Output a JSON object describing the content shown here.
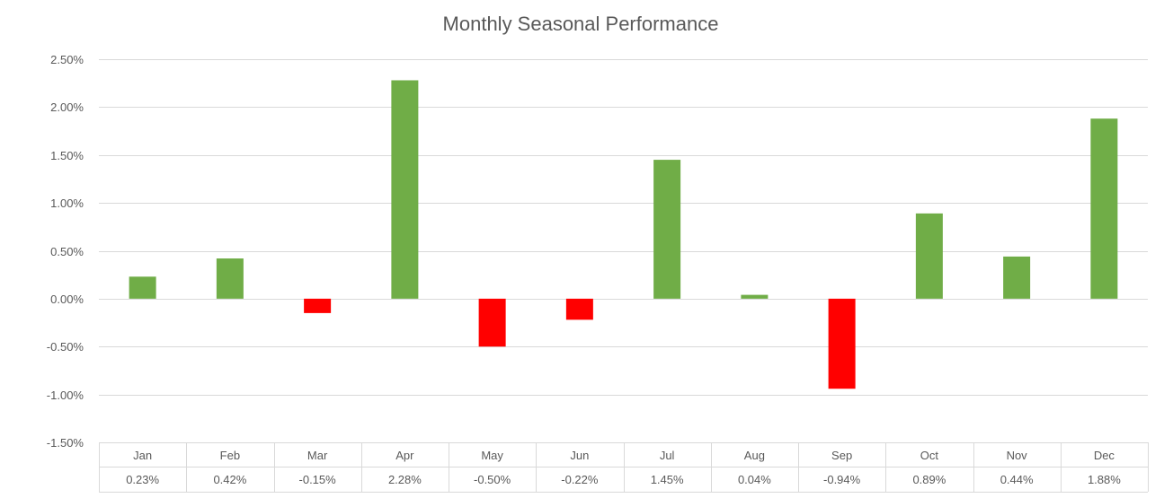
{
  "chart_data": {
    "type": "bar",
    "title": "Monthly Seasonal Performance",
    "xlabel": "",
    "ylabel": "",
    "categories": [
      "Jan",
      "Feb",
      "Mar",
      "Apr",
      "May",
      "Jun",
      "Jul",
      "Aug",
      "Sep",
      "Oct",
      "Nov",
      "Dec"
    ],
    "values": [
      0.23,
      0.42,
      -0.15,
      2.28,
      -0.5,
      -0.22,
      1.45,
      0.04,
      -0.94,
      0.89,
      0.44,
      1.88
    ],
    "value_labels": [
      "0.23%",
      "0.42%",
      "-0.15%",
      "2.28%",
      "-0.50%",
      "-0.22%",
      "1.45%",
      "0.04%",
      "-0.94%",
      "0.89%",
      "0.44%",
      "1.88%"
    ],
    "ylim": [
      -1.5,
      2.5
    ],
    "yticks": [
      2.5,
      2.0,
      1.5,
      1.0,
      0.5,
      0.0,
      -0.5,
      -1.0,
      -1.5
    ],
    "ytick_labels": [
      "2.50%",
      "2.00%",
      "1.50%",
      "1.00%",
      "0.50%",
      "0.00%",
      "-0.50%",
      "-1.00%",
      "-1.50%"
    ],
    "grid": true,
    "data_table": true,
    "colors": {
      "positive": "#70AD47",
      "negative": "#FF0000",
      "grid": "#D9D9D9",
      "text": "#595959"
    }
  }
}
